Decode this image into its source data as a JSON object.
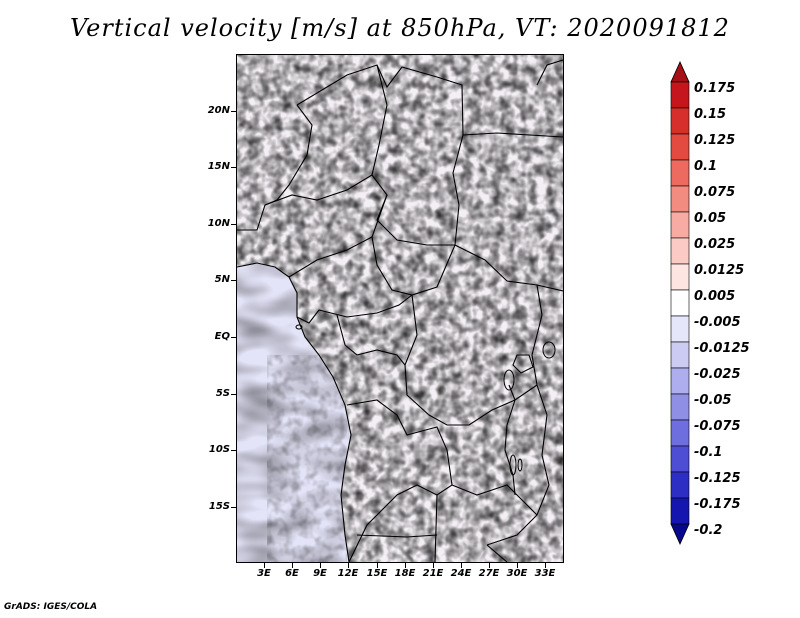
{
  "title": "Vertical velocity [m/s] at 850hPa, VT: 2020091812",
  "credit": "GrADS: IGES/COLA",
  "latitude_labels": [
    "20N",
    "15N",
    "10N",
    "5N",
    "EQ",
    "5S",
    "10S",
    "15S"
  ],
  "longitude_labels": [
    "3E",
    "6E",
    "9E",
    "12E",
    "15E",
    "18E",
    "21E",
    "24E",
    "27E",
    "30E",
    "33E"
  ],
  "colorbar": {
    "labels": [
      "0.175",
      "0.15",
      "0.125",
      "0.1",
      "0.075",
      "0.05",
      "0.025",
      "0.0125",
      "0.005",
      "-0.005",
      "-0.0125",
      "-0.025",
      "-0.05",
      "-0.075",
      "-0.1",
      "-0.125",
      "-0.175",
      "-0.2"
    ],
    "colors": [
      "#a50f15",
      "#c4161c",
      "#d7302c",
      "#e34a40",
      "#ec6a5f",
      "#f28b80",
      "#f7aba2",
      "#fbcac4",
      "#fde6e2",
      "#ffffff",
      "#e6e6fb",
      "#cbcbf4",
      "#aeaeee",
      "#8f8fe6",
      "#6e6ede",
      "#4d4ed4",
      "#2d2fc4",
      "#1515b0",
      "#08088f"
    ]
  },
  "colors": {
    "land_base": "#f3eff4",
    "ocean_base": "#e7e7f7",
    "positive": "#e04848",
    "negative": "#5555dd",
    "border": "#000000"
  }
}
